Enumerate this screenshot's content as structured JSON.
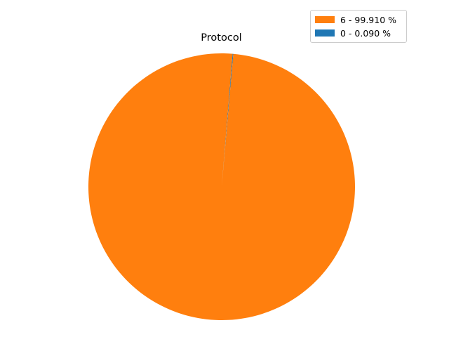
{
  "chart_data": {
    "type": "pie",
    "title": "Protocol",
    "slices": [
      {
        "label": "6 - 99.910 %",
        "value": 99.91,
        "color": "#ff7f0e"
      },
      {
        "label": "0 - 0.090 %",
        "value": 0.09,
        "color": "#1f77b4"
      }
    ],
    "start_angle_deg": 85,
    "direction": "counterclockwise",
    "legend_position": "top-right",
    "grid": false
  }
}
